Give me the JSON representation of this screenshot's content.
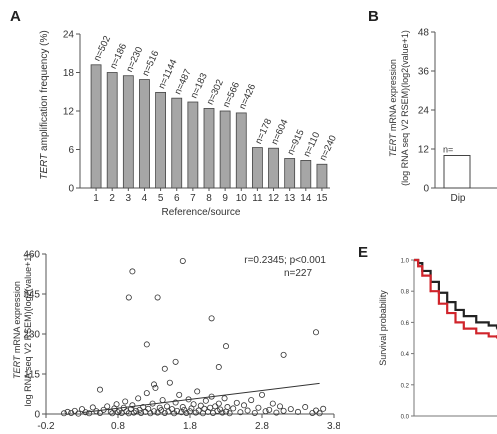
{
  "panels": {
    "a": "A",
    "b": "B",
    "e": "E"
  },
  "chart_data": [
    {
      "id": "A",
      "type": "bar",
      "ylabel_prefix": "TERT",
      "ylabel_rest": " amplification frequency (%)",
      "xlabel": "Reference/source",
      "categories": [
        "1",
        "2",
        "3",
        "4",
        "5",
        "6",
        "7",
        "8",
        "9",
        "10",
        "11",
        "12",
        "13",
        "14",
        "15"
      ],
      "values": [
        19.2,
        18.0,
        17.5,
        16.9,
        14.9,
        14.0,
        13.4,
        12.4,
        12.0,
        11.7,
        6.3,
        6.2,
        4.6,
        4.3,
        3.7
      ],
      "bar_labels": [
        "n=502",
        "n=186",
        "n=230",
        "n=516",
        "n=1144",
        "n=487",
        "n=183",
        "n=302",
        "n=566",
        "n=426",
        "n=178",
        "n=604",
        "n=915",
        "n=110",
        "n=240"
      ],
      "yticks": [
        "0",
        "6",
        "12",
        "18",
        "24"
      ],
      "ylim": [
        0,
        24
      ]
    },
    {
      "id": "B",
      "type": "bar",
      "ylabel_prefix": "TERT",
      "ylabel_rest": " mRNA expression",
      "ylabel2": "(log RNA seq V2 RSEM)(log2(value+1)",
      "yticks": [
        "0",
        "12",
        "24",
        "36",
        "48"
      ],
      "ylim": [
        0,
        48
      ],
      "categories": [
        "Dip"
      ],
      "values": [
        10
      ],
      "bar_labels": [
        "n="
      ]
    },
    {
      "id": "D",
      "type": "scatter",
      "ylabel_prefix": "TERT",
      "ylabel_rest": " mRNA expression",
      "ylabel2": "log RNA seq V2 RSEM)(log2(value+1)",
      "annotation1": "r=0.2345; p<0.001",
      "annotation2": "n=227",
      "xticks": [
        "-0.2",
        "0.8",
        "1.8",
        "2.8",
        "3.8"
      ],
      "yticks": [
        "0",
        "115",
        "230",
        "345",
        "460"
      ],
      "xlim": [
        -0.2,
        3.8
      ],
      "ylim": [
        0,
        460
      ],
      "trend": [
        [
          0.3,
          4
        ],
        [
          3.6,
          88
        ]
      ],
      "points": [
        [
          0.05,
          2
        ],
        [
          0.1,
          6
        ],
        [
          0.15,
          3
        ],
        [
          0.2,
          9
        ],
        [
          0.25,
          1
        ],
        [
          0.3,
          14
        ],
        [
          0.35,
          5
        ],
        [
          0.4,
          2
        ],
        [
          0.45,
          19
        ],
        [
          0.5,
          8
        ],
        [
          0.55,
          3
        ],
        [
          0.6,
          12
        ],
        [
          0.65,
          22
        ],
        [
          0.7,
          6
        ],
        [
          0.72,
          2
        ],
        [
          0.75,
          16
        ],
        [
          0.78,
          28
        ],
        [
          0.8,
          5
        ],
        [
          0.82,
          10
        ],
        [
          0.85,
          3
        ],
        [
          0.88,
          18
        ],
        [
          0.9,
          36
        ],
        [
          0.92,
          8
        ],
        [
          0.95,
          2
        ],
        [
          0.98,
          14
        ],
        [
          1.0,
          25
        ],
        [
          1.02,
          4
        ],
        [
          1.05,
          9
        ],
        [
          1.08,
          45
        ],
        [
          1.1,
          12
        ],
        [
          1.12,
          3
        ],
        [
          1.15,
          20
        ],
        [
          1.18,
          6
        ],
        [
          1.2,
          60
        ],
        [
          1.22,
          15
        ],
        [
          1.25,
          2
        ],
        [
          1.28,
          30
        ],
        [
          1.3,
          8
        ],
        [
          1.32,
          75
        ],
        [
          1.35,
          4
        ],
        [
          1.38,
          18
        ],
        [
          1.4,
          11
        ],
        [
          1.42,
          40
        ],
        [
          1.45,
          3
        ],
        [
          1.48,
          22
        ],
        [
          1.5,
          7
        ],
        [
          1.52,
          90
        ],
        [
          1.55,
          14
        ],
        [
          1.58,
          2
        ],
        [
          1.6,
          33
        ],
        [
          1.62,
          9
        ],
        [
          1.65,
          55
        ],
        [
          1.68,
          5
        ],
        [
          1.7,
          20
        ],
        [
          1.72,
          12
        ],
        [
          1.75,
          3
        ],
        [
          1.78,
          42
        ],
        [
          1.8,
          8
        ],
        [
          1.82,
          16
        ],
        [
          1.85,
          28
        ],
        [
          1.88,
          4
        ],
        [
          1.9,
          65
        ],
        [
          1.92,
          10
        ],
        [
          1.95,
          24
        ],
        [
          1.98,
          2
        ],
        [
          2.0,
          15
        ],
        [
          2.02,
          38
        ],
        [
          2.05,
          6
        ],
        [
          2.08,
          18
        ],
        [
          2.1,
          50
        ],
        [
          2.12,
          3
        ],
        [
          2.15,
          22
        ],
        [
          2.18,
          9
        ],
        [
          2.2,
          30
        ],
        [
          2.22,
          13
        ],
        [
          2.25,
          4
        ],
        [
          2.28,
          45
        ],
        [
          2.3,
          7
        ],
        [
          2.32,
          20
        ],
        [
          2.35,
          2
        ],
        [
          2.4,
          16
        ],
        [
          2.45,
          32
        ],
        [
          2.5,
          5
        ],
        [
          2.55,
          25
        ],
        [
          2.6,
          10
        ],
        [
          2.65,
          40
        ],
        [
          2.7,
          3
        ],
        [
          2.75,
          18
        ],
        [
          2.8,
          55
        ],
        [
          2.85,
          8
        ],
        [
          2.9,
          12
        ],
        [
          2.95,
          30
        ],
        [
          3.0,
          4
        ],
        [
          3.05,
          22
        ],
        [
          3.1,
          9
        ],
        [
          3.2,
          14
        ],
        [
          3.3,
          6
        ],
        [
          3.4,
          20
        ],
        [
          3.5,
          3
        ],
        [
          3.55,
          10
        ],
        [
          3.6,
          2
        ],
        [
          3.65,
          15
        ],
        [
          1.0,
          410
        ],
        [
          0.95,
          335
        ],
        [
          1.35,
          335
        ],
        [
          1.7,
          440
        ],
        [
          2.1,
          275
        ],
        [
          3.55,
          235
        ],
        [
          2.3,
          195
        ],
        [
          1.2,
          200
        ],
        [
          1.6,
          150
        ],
        [
          2.2,
          135
        ],
        [
          3.1,
          170
        ],
        [
          1.3,
          85
        ],
        [
          0.55,
          70
        ],
        [
          1.45,
          130
        ]
      ]
    },
    {
      "id": "E",
      "type": "line",
      "ylabel": "Survival probability",
      "yticks": [
        "1.0",
        "0.8",
        "0.6",
        "0.4",
        "0.2",
        "0.0"
      ],
      "ylim": [
        0,
        1
      ],
      "xlim": [
        0,
        1
      ],
      "series": [
        {
          "color": "#222222",
          "x": [
            0,
            0.05,
            0.1,
            0.2,
            0.3,
            0.4,
            0.5,
            0.6,
            0.75,
            0.9,
            1.0
          ],
          "y": [
            1.0,
            0.98,
            0.93,
            0.86,
            0.79,
            0.73,
            0.68,
            0.64,
            0.6,
            0.58,
            0.56
          ]
        },
        {
          "color": "#d0242b",
          "x": [
            0,
            0.05,
            0.1,
            0.2,
            0.3,
            0.4,
            0.5,
            0.6,
            0.75,
            0.9,
            1.0
          ],
          "y": [
            1.0,
            0.96,
            0.9,
            0.8,
            0.72,
            0.66,
            0.6,
            0.56,
            0.53,
            0.51,
            0.5
          ]
        }
      ]
    }
  ]
}
